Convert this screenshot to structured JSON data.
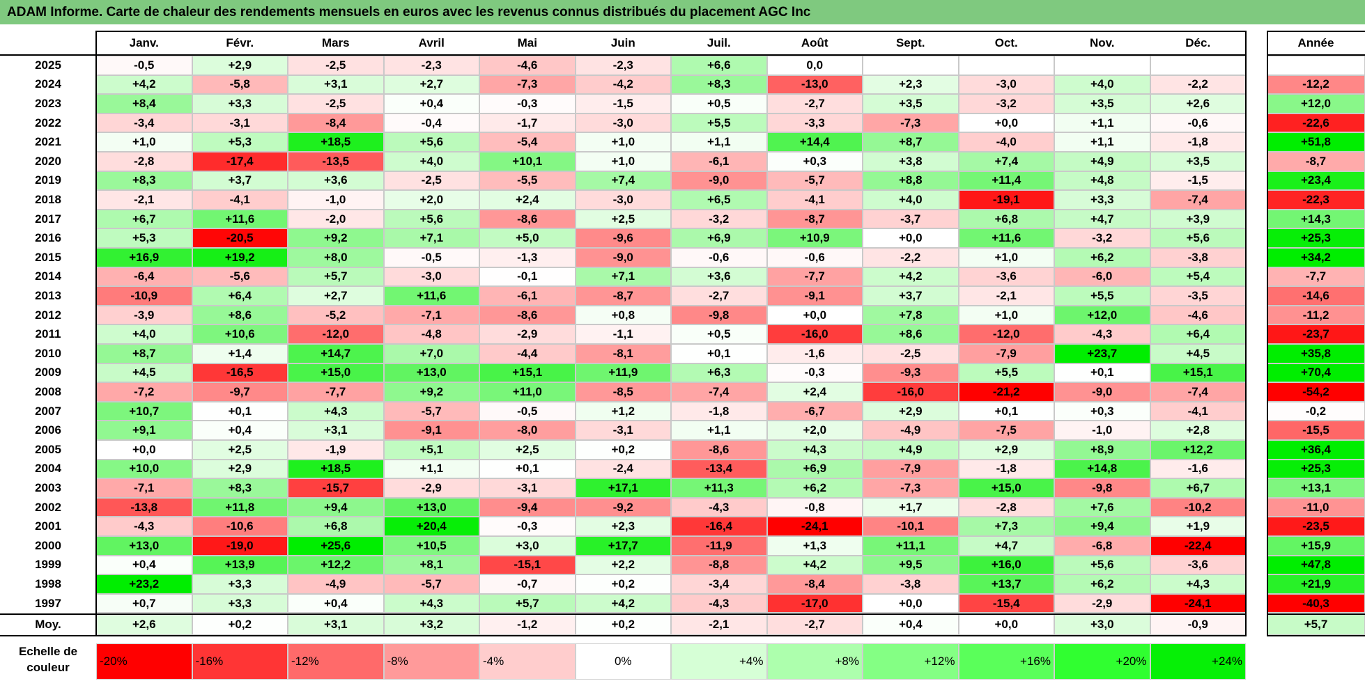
{
  "title": "ADAM Informe. Carte de chaleur des rendements mensuels en euros avec les revenus connus distribués du placement AGC Inc",
  "chart_data": {
    "type": "heatmap",
    "columns": [
      "Janv.",
      "Févr.",
      "Mars",
      "Avril",
      "Mai",
      "Juin",
      "Juil.",
      "Août",
      "Sept.",
      "Oct.",
      "Nov.",
      "Déc."
    ],
    "year_column_label": "Année",
    "average_row_label": "Moy.",
    "rows": [
      {
        "year": "2025",
        "months": [
          "-0,5",
          "+2,9",
          "-2,5",
          "-2,3",
          "-4,6",
          "-2,3",
          "+6,6",
          "0,0",
          "",
          "",
          "",
          ""
        ],
        "annual": ""
      },
      {
        "year": "2024",
        "months": [
          "+4,2",
          "-5,8",
          "+3,1",
          "+2,7",
          "-7,3",
          "-4,2",
          "+8,3",
          "-13,0",
          "+2,3",
          "-3,0",
          "+4,0",
          "-2,2"
        ],
        "annual": "-12,2"
      },
      {
        "year": "2023",
        "months": [
          "+8,4",
          "+3,3",
          "-2,5",
          "+0,4",
          "-0,3",
          "-1,5",
          "+0,5",
          "-2,7",
          "+3,5",
          "-3,2",
          "+3,5",
          "+2,6"
        ],
        "annual": "+12,0"
      },
      {
        "year": "2022",
        "months": [
          "-3,4",
          "-3,1",
          "-8,4",
          "-0,4",
          "-1,7",
          "-3,0",
          "+5,5",
          "-3,3",
          "-7,3",
          "+0,0",
          "+1,1",
          "-0,6"
        ],
        "annual": "-22,6"
      },
      {
        "year": "2021",
        "months": [
          "+1,0",
          "+5,3",
          "+18,5",
          "+5,6",
          "-5,4",
          "+1,0",
          "+1,1",
          "+14,4",
          "+8,7",
          "-4,0",
          "+1,1",
          "-1,8"
        ],
        "annual": "+51,8"
      },
      {
        "year": "2020",
        "months": [
          "-2,8",
          "-17,4",
          "-13,5",
          "+4,0",
          "+10,1",
          "+1,0",
          "-6,1",
          "+0,3",
          "+3,8",
          "+7,4",
          "+4,9",
          "+3,5"
        ],
        "annual": "-8,7"
      },
      {
        "year": "2019",
        "months": [
          "+8,3",
          "+3,7",
          "+3,6",
          "-2,5",
          "-5,5",
          "+7,4",
          "-9,0",
          "-5,7",
          "+8,8",
          "+11,4",
          "+4,8",
          "-1,5"
        ],
        "annual": "+23,4"
      },
      {
        "year": "2018",
        "months": [
          "-2,1",
          "-4,1",
          "-1,0",
          "+2,0",
          "+2,4",
          "-3,0",
          "+6,5",
          "-4,1",
          "+4,0",
          "-19,1",
          "+3,3",
          "-7,4"
        ],
        "annual": "-22,3"
      },
      {
        "year": "2017",
        "months": [
          "+6,7",
          "+11,6",
          "-2,0",
          "+5,6",
          "-8,6",
          "+2,5",
          "-3,2",
          "-8,7",
          "-3,7",
          "+6,8",
          "+4,7",
          "+3,9"
        ],
        "annual": "+14,3"
      },
      {
        "year": "2016",
        "months": [
          "+5,3",
          "-20,5",
          "+9,2",
          "+7,1",
          "+5,0",
          "-9,6",
          "+6,9",
          "+10,9",
          "+0,0",
          "+11,6",
          "-3,2",
          "+5,6"
        ],
        "annual": "+25,3"
      },
      {
        "year": "2015",
        "months": [
          "+16,9",
          "+19,2",
          "+8,0",
          "-0,5",
          "-1,3",
          "-9,0",
          "-0,6",
          "-0,6",
          "-2,2",
          "+1,0",
          "+6,2",
          "-3,8"
        ],
        "annual": "+34,2"
      },
      {
        "year": "2014",
        "months": [
          "-6,4",
          "-5,6",
          "+5,7",
          "-3,0",
          "-0,1",
          "+7,1",
          "+3,6",
          "-7,7",
          "+4,2",
          "-3,6",
          "-6,0",
          "+5,4"
        ],
        "annual": "-7,7"
      },
      {
        "year": "2013",
        "months": [
          "-10,9",
          "+6,4",
          "+2,7",
          "+11,6",
          "-6,1",
          "-8,7",
          "-2,7",
          "-9,1",
          "+3,7",
          "-2,1",
          "+5,5",
          "-3,5"
        ],
        "annual": "-14,6"
      },
      {
        "year": "2012",
        "months": [
          "-3,9",
          "+8,6",
          "-5,2",
          "-7,1",
          "-8,6",
          "+0,8",
          "-9,8",
          "+0,0",
          "+7,8",
          "+1,0",
          "+12,0",
          "-4,6"
        ],
        "annual": "-11,2"
      },
      {
        "year": "2011",
        "months": [
          "+4,0",
          "+10,6",
          "-12,0",
          "-4,8",
          "-2,9",
          "-1,1",
          "+0,5",
          "-16,0",
          "+8,6",
          "-12,0",
          "-4,3",
          "+6,4"
        ],
        "annual": "-23,7"
      },
      {
        "year": "2010",
        "months": [
          "+8,7",
          "+1,4",
          "+14,7",
          "+7,0",
          "-4,4",
          "-8,1",
          "+0,1",
          "-1,6",
          "-2,5",
          "-7,9",
          "+23,7",
          "+4,5"
        ],
        "annual": "+35,8"
      },
      {
        "year": "2009",
        "months": [
          "+4,5",
          "-16,5",
          "+15,0",
          "+13,0",
          "+15,1",
          "+11,9",
          "+6,3",
          "-0,3",
          "-9,3",
          "+5,5",
          "+0,1",
          "+15,1"
        ],
        "annual": "+70,4"
      },
      {
        "year": "2008",
        "months": [
          "-7,2",
          "-9,7",
          "-7,7",
          "+9,2",
          "+11,0",
          "-8,5",
          "-7,4",
          "+2,4",
          "-16,0",
          "-21,2",
          "-9,0",
          "-7,4"
        ],
        "annual": "-54,2"
      },
      {
        "year": "2007",
        "months": [
          "+10,7",
          "+0,1",
          "+4,3",
          "-5,7",
          "-0,5",
          "+1,2",
          "-1,8",
          "-6,7",
          "+2,9",
          "+0,1",
          "+0,3",
          "-4,1"
        ],
        "annual": "-0,2"
      },
      {
        "year": "2006",
        "months": [
          "+9,1",
          "+0,4",
          "+3,1",
          "-9,1",
          "-8,0",
          "-3,1",
          "+1,1",
          "+2,0",
          "-4,9",
          "-7,5",
          "-1,0",
          "+2,8"
        ],
        "annual": "-15,5"
      },
      {
        "year": "2005",
        "months": [
          "+0,0",
          "+2,5",
          "-1,9",
          "+5,1",
          "+2,5",
          "+0,2",
          "-8,6",
          "+4,3",
          "+4,9",
          "+2,9",
          "+8,9",
          "+12,2"
        ],
        "annual": "+36,4"
      },
      {
        "year": "2004",
        "months": [
          "+10,0",
          "+2,9",
          "+18,5",
          "+1,1",
          "+0,1",
          "-2,4",
          "-13,4",
          "+6,9",
          "-7,9",
          "-1,8",
          "+14,8",
          "-1,6"
        ],
        "annual": "+25,3"
      },
      {
        "year": "2003",
        "months": [
          "-7,1",
          "+8,3",
          "-15,7",
          "-2,9",
          "-3,1",
          "+17,1",
          "+11,3",
          "+6,2",
          "-7,3",
          "+15,0",
          "-9,8",
          "+6,7"
        ],
        "annual": "+13,1"
      },
      {
        "year": "2002",
        "months": [
          "-13,8",
          "+11,8",
          "+9,4",
          "+13,0",
          "-9,4",
          "-9,2",
          "-4,3",
          "-0,8",
          "+1,7",
          "-2,8",
          "+7,6",
          "-10,2"
        ],
        "annual": "-11,0"
      },
      {
        "year": "2001",
        "months": [
          "-4,3",
          "-10,6",
          "+6,8",
          "+20,4",
          "-0,3",
          "+2,3",
          "-16,4",
          "-24,1",
          "-10,1",
          "+7,3",
          "+9,4",
          "+1,9"
        ],
        "annual": "-23,5"
      },
      {
        "year": "2000",
        "months": [
          "+13,0",
          "-19,0",
          "+25,6",
          "+10,5",
          "+3,0",
          "+17,7",
          "-11,9",
          "+1,3",
          "+11,1",
          "+4,7",
          "-6,8",
          "-22,4"
        ],
        "annual": "+15,9"
      },
      {
        "year": "1999",
        "months": [
          "+0,4",
          "+13,9",
          "+12,2",
          "+8,1",
          "-15,1",
          "+2,2",
          "-8,8",
          "+4,2",
          "+9,5",
          "+16,0",
          "+5,6",
          "-3,6"
        ],
        "annual": "+47,8"
      },
      {
        "year": "1998",
        "months": [
          "+23,2",
          "+3,3",
          "-4,9",
          "-5,7",
          "-0,7",
          "+0,2",
          "-3,4",
          "-8,4",
          "-3,8",
          "+13,7",
          "+6,2",
          "+4,3"
        ],
        "annual": "+21,9"
      },
      {
        "year": "1997",
        "months": [
          "+0,7",
          "+3,3",
          "+0,4",
          "+4,3",
          "+5,7",
          "+4,2",
          "-4,3",
          "-17,0",
          "+0,0",
          "-15,4",
          "-2,9",
          "-24,1"
        ],
        "annual": "-40,3"
      }
    ],
    "averages": {
      "months": [
        "+2,6",
        "+0,2",
        "+3,1",
        "+3,2",
        "-1,2",
        "+0,2",
        "-2,1",
        "-2,7",
        "+0,4",
        "+0,0",
        "+3,0",
        "-0,9"
      ],
      "annual": "+5,7"
    },
    "color_scale": {
      "label": "Echelle de couleur",
      "stops": [
        {
          "label": "-20%",
          "value": -20,
          "color": "#ff0000"
        },
        {
          "label": "-16%",
          "value": -16,
          "color": "#ff3535"
        },
        {
          "label": "-12%",
          "value": -12,
          "color": "#ff6a6a"
        },
        {
          "label": "-8%",
          "value": -8,
          "color": "#ff9a9a"
        },
        {
          "label": "-4%",
          "value": -4,
          "color": "#ffcdcd"
        },
        {
          "label": "0%",
          "value": 0,
          "color": "#ffffff"
        },
        {
          "label": "+4%",
          "value": 4,
          "color": "#d6ffd6"
        },
        {
          "label": "+8%",
          "value": 8,
          "color": "#adffad"
        },
        {
          "label": "+12%",
          "value": 12,
          "color": "#84ff84"
        },
        {
          "label": "+16%",
          "value": 16,
          "color": "#5aff5a"
        },
        {
          "label": "+20%",
          "value": 20,
          "color": "#30ff30"
        },
        {
          "label": "+24%",
          "value": 24,
          "color": "#06f006"
        }
      ]
    }
  },
  "colors": {
    "title_bar": "#7fc97f",
    "negative_max": "#ff0000",
    "positive_max": "#00ee00",
    "neutral": "#ffffff"
  }
}
